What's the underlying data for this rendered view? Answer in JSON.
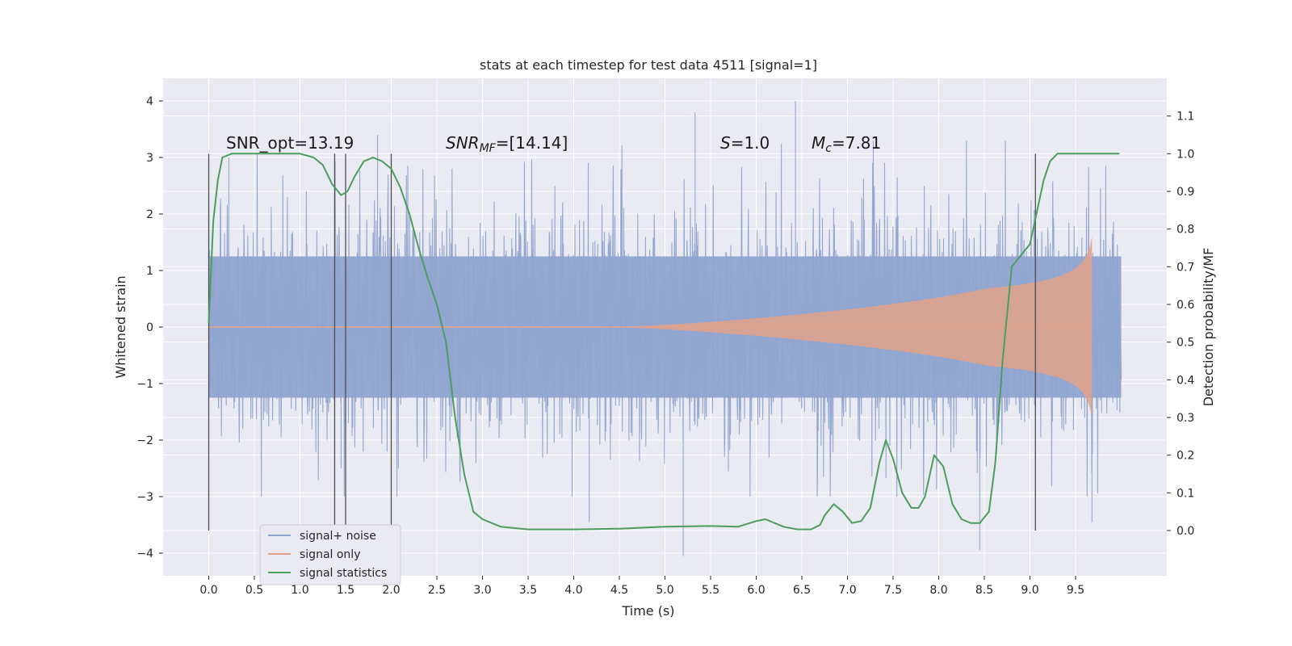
{
  "chart_data": {
    "type": "line",
    "title": "stats at each timestep for test data 4511 [signal=1]",
    "xlabel": "Time (s)",
    "ylabel": "Whitened strain",
    "y2label": "Detection probability/MF",
    "xlim": [
      -0.5,
      10.5
    ],
    "ylim": [
      -4.4,
      4.4
    ],
    "y2lim": [
      -0.12,
      1.2
    ],
    "xticks": [
      0.0,
      0.5,
      1.0,
      1.5,
      2.0,
      2.5,
      3.0,
      3.5,
      4.0,
      4.5,
      5.0,
      5.5,
      6.0,
      6.5,
      7.0,
      7.5,
      8.0,
      8.5,
      9.0,
      9.5
    ],
    "xtick_labels": [
      "0.0",
      "0.5",
      "1.0",
      "1.5",
      "2.0",
      "2.5",
      "3.0",
      "3.5",
      "4.0",
      "4.5",
      "5.0",
      "5.5",
      "6.0",
      "6.5",
      "7.0",
      "7.5",
      "8.0",
      "8.5",
      "9.0",
      "9.5"
    ],
    "yticks": [
      4,
      3,
      2,
      1,
      0,
      -1,
      -2,
      -3,
      -4
    ],
    "ytick_labels": [
      "4",
      "3",
      "2",
      "1",
      "0",
      "−1",
      "−2",
      "−3",
      "−4"
    ],
    "y2ticks": [
      1.1,
      1.0,
      0.9,
      0.8,
      0.7,
      0.6,
      0.5,
      0.4,
      0.3,
      0.2,
      0.1,
      0.0
    ],
    "y2tick_labels": [
      "1.1",
      "1.0",
      "0.9",
      "0.8",
      "0.7",
      "0.6",
      "0.5",
      "0.4",
      "0.3",
      "0.2",
      "0.1",
      "0.0"
    ],
    "grid": true,
    "legend_position": "lower-left",
    "annotations": {
      "snr_opt": "SNR_opt=13.19",
      "snr_mf_base": "SNR",
      "snr_mf_sub": "MF",
      "snr_mf_rest": "=[14.14]",
      "s_label": "S",
      "s_value": "=1.0",
      "mc_base": "M",
      "mc_sub": "c",
      "mc_value": "=7.81"
    },
    "vertical_markers": [
      0.0,
      1.38,
      1.5,
      2.0,
      9.06
    ],
    "series": [
      {
        "name": "signal+ noise",
        "color": "#8fa4cf",
        "t_start": 0.0,
        "t_end": 10.0,
        "envelope_core": 1.25,
        "typical_extremes": [
          -2.6,
          3.2
        ],
        "notable_peaks": [
          [
            0.22,
            3.0
          ],
          [
            1.85,
            3.4
          ],
          [
            5.33,
            3.8
          ],
          [
            6.43,
            4.0
          ],
          [
            1.45,
            -2.5
          ],
          [
            5.2,
            -4.05
          ],
          [
            8.45,
            -3.95
          ],
          [
            9.68,
            -3.45
          ],
          [
            4.17,
            -3.45
          ]
        ]
      },
      {
        "name": "signal only",
        "color": "#e2a28a",
        "t_start": 0.0,
        "t_end": 9.68,
        "amplitude_at_end": 1.6
      },
      {
        "name": "signal statistics",
        "color": "#4c9d5e",
        "x": [
          0.0,
          0.05,
          0.1,
          0.15,
          0.25,
          0.5,
          0.8,
          1.0,
          1.15,
          1.25,
          1.35,
          1.45,
          1.52,
          1.6,
          1.7,
          1.8,
          1.9,
          2.0,
          2.1,
          2.2,
          2.3,
          2.4,
          2.5,
          2.6,
          2.7,
          2.8,
          2.9,
          3.0,
          3.2,
          3.5,
          4.0,
          4.5,
          5.0,
          5.5,
          5.8,
          6.0,
          6.1,
          6.2,
          6.3,
          6.45,
          6.6,
          6.7,
          6.75,
          6.85,
          6.95,
          7.05,
          7.15,
          7.25,
          7.35,
          7.42,
          7.5,
          7.6,
          7.7,
          7.78,
          7.85,
          7.95,
          8.05,
          8.15,
          8.25,
          8.35,
          8.45,
          8.55,
          8.62,
          8.7,
          8.8,
          8.9,
          9.0,
          9.08,
          9.15,
          9.22,
          9.3,
          9.4,
          9.6,
          9.8,
          9.98
        ],
        "values": [
          0.55,
          0.82,
          0.93,
          0.99,
          1.0,
          1.0,
          1.0,
          1.0,
          0.99,
          0.97,
          0.92,
          0.89,
          0.9,
          0.94,
          0.98,
          0.99,
          0.98,
          0.96,
          0.91,
          0.84,
          0.75,
          0.67,
          0.6,
          0.5,
          0.3,
          0.15,
          0.05,
          0.03,
          0.01,
          0.003,
          0.003,
          0.005,
          0.01,
          0.012,
          0.01,
          0.025,
          0.03,
          0.02,
          0.01,
          0.003,
          0.003,
          0.015,
          0.04,
          0.07,
          0.05,
          0.02,
          0.025,
          0.06,
          0.18,
          0.24,
          0.19,
          0.1,
          0.06,
          0.06,
          0.09,
          0.2,
          0.17,
          0.07,
          0.03,
          0.02,
          0.02,
          0.05,
          0.18,
          0.45,
          0.7,
          0.73,
          0.76,
          0.85,
          0.93,
          0.98,
          1.0,
          1.0,
          1.0,
          1.0,
          1.0
        ]
      }
    ]
  }
}
